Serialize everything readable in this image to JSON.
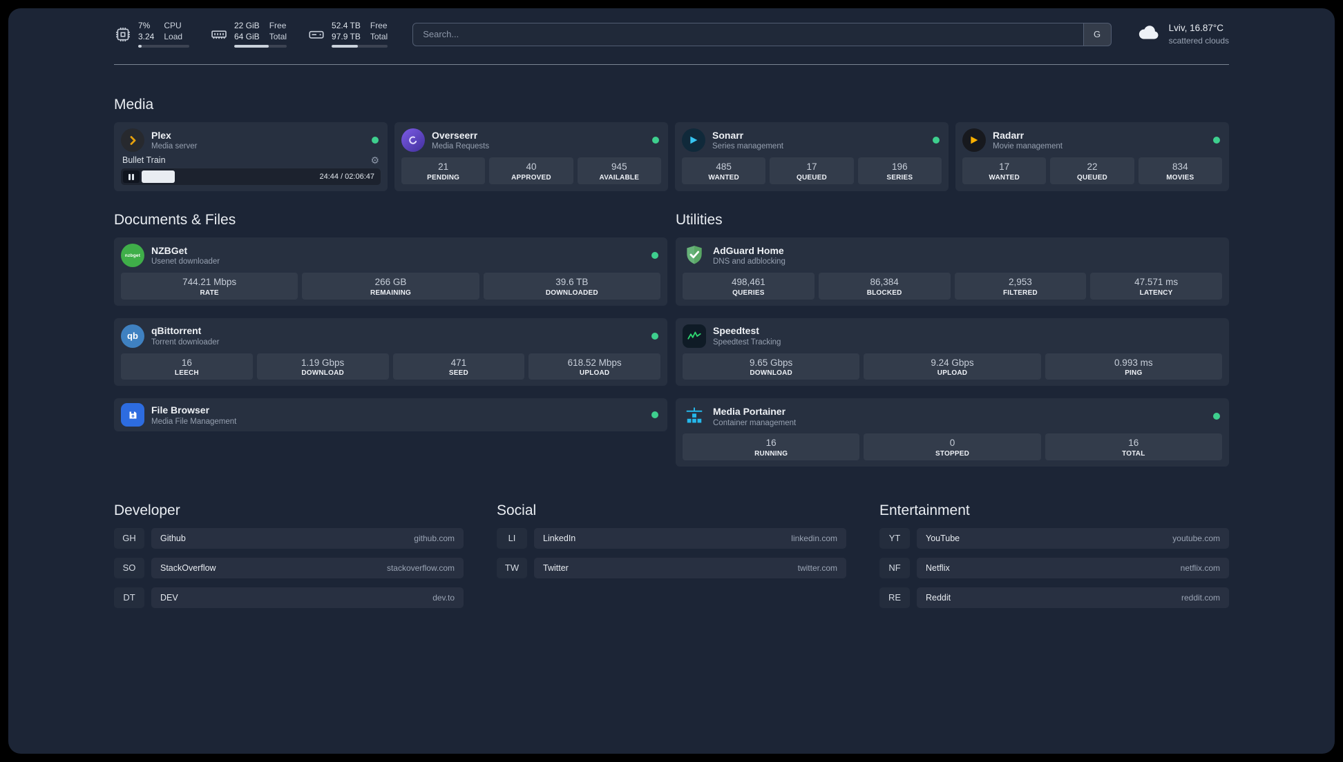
{
  "topbar": {
    "cpu": {
      "value_primary": "7%",
      "value_secondary": "3.24",
      "label_primary": "CPU",
      "label_secondary": "Load",
      "bar_percent": 7
    },
    "memory": {
      "value_primary": "22 GiB",
      "value_secondary": "64 GiB",
      "label_primary": "Free",
      "label_secondary": "Total",
      "bar_percent": 66
    },
    "disk": {
      "value_primary": "52.4 TB",
      "value_secondary": "97.9 TB",
      "label_primary": "Free",
      "label_secondary": "Total",
      "bar_percent": 47
    },
    "search": {
      "placeholder": "Search...",
      "provider": "G"
    },
    "weather": {
      "location": "Lviv, 16.87°C",
      "condition": "scattered clouds"
    }
  },
  "sections": {
    "media": {
      "title": "Media",
      "plex": {
        "name": "Plex",
        "subtitle": "Media server",
        "now_playing": "Bullet Train",
        "time": "24:44 / 02:06:47",
        "progress_percent": 19
      },
      "overseerr": {
        "name": "Overseerr",
        "subtitle": "Media Requests",
        "stats": [
          {
            "value": "21",
            "label": "PENDING"
          },
          {
            "value": "40",
            "label": "APPROVED"
          },
          {
            "value": "945",
            "label": "AVAILABLE"
          }
        ]
      },
      "sonarr": {
        "name": "Sonarr",
        "subtitle": "Series management",
        "stats": [
          {
            "value": "485",
            "label": "WANTED"
          },
          {
            "value": "17",
            "label": "QUEUED"
          },
          {
            "value": "196",
            "label": "SERIES"
          }
        ]
      },
      "radarr": {
        "name": "Radarr",
        "subtitle": "Movie management",
        "stats": [
          {
            "value": "17",
            "label": "WANTED"
          },
          {
            "value": "22",
            "label": "QUEUED"
          },
          {
            "value": "834",
            "label": "MOVIES"
          }
        ]
      }
    },
    "documents": {
      "title": "Documents & Files",
      "nzbget": {
        "name": "NZBGet",
        "subtitle": "Usenet downloader",
        "stats": [
          {
            "value": "744.21 Mbps",
            "label": "RATE"
          },
          {
            "value": "266 GB",
            "label": "REMAINING"
          },
          {
            "value": "39.6 TB",
            "label": "DOWNLOADED"
          }
        ]
      },
      "qbittorrent": {
        "name": "qBittorrent",
        "subtitle": "Torrent downloader",
        "stats": [
          {
            "value": "16",
            "label": "LEECH"
          },
          {
            "value": "1.19 Gbps",
            "label": "DOWNLOAD"
          },
          {
            "value": "471",
            "label": "SEED"
          },
          {
            "value": "618.52 Mbps",
            "label": "UPLOAD"
          }
        ]
      },
      "filebrowser": {
        "name": "File Browser",
        "subtitle": "Media File Management"
      }
    },
    "utilities": {
      "title": "Utilities",
      "adguard": {
        "name": "AdGuard Home",
        "subtitle": "DNS and adblocking",
        "stats": [
          {
            "value": "498,461",
            "label": "QUERIES"
          },
          {
            "value": "86,384",
            "label": "BLOCKED"
          },
          {
            "value": "2,953",
            "label": "FILTERED"
          },
          {
            "value": "47.571 ms",
            "label": "LATENCY"
          }
        ]
      },
      "speedtest": {
        "name": "Speedtest",
        "subtitle": "Speedtest Tracking",
        "stats": [
          {
            "value": "9.65 Gbps",
            "label": "DOWNLOAD"
          },
          {
            "value": "9.24 Gbps",
            "label": "UPLOAD"
          },
          {
            "value": "0.993 ms",
            "label": "PING"
          }
        ]
      },
      "portainer": {
        "name": "Media Portainer",
        "subtitle": "Container management",
        "stats": [
          {
            "value": "16",
            "label": "RUNNING"
          },
          {
            "value": "0",
            "label": "STOPPED"
          },
          {
            "value": "16",
            "label": "TOTAL"
          }
        ]
      }
    }
  },
  "bookmarks": {
    "developer": {
      "title": "Developer",
      "items": [
        {
          "abbr": "GH",
          "name": "Github",
          "url": "github.com"
        },
        {
          "abbr": "SO",
          "name": "StackOverflow",
          "url": "stackoverflow.com"
        },
        {
          "abbr": "DT",
          "name": "DEV",
          "url": "dev.to"
        }
      ]
    },
    "social": {
      "title": "Social",
      "items": [
        {
          "abbr": "LI",
          "name": "LinkedIn",
          "url": "linkedin.com"
        },
        {
          "abbr": "TW",
          "name": "Twitter",
          "url": "twitter.com"
        }
      ]
    },
    "entertainment": {
      "title": "Entertainment",
      "items": [
        {
          "abbr": "YT",
          "name": "YouTube",
          "url": "youtube.com"
        },
        {
          "abbr": "NF",
          "name": "Netflix",
          "url": "netflix.com"
        },
        {
          "abbr": "RE",
          "name": "Reddit",
          "url": "reddit.com"
        }
      ]
    }
  }
}
